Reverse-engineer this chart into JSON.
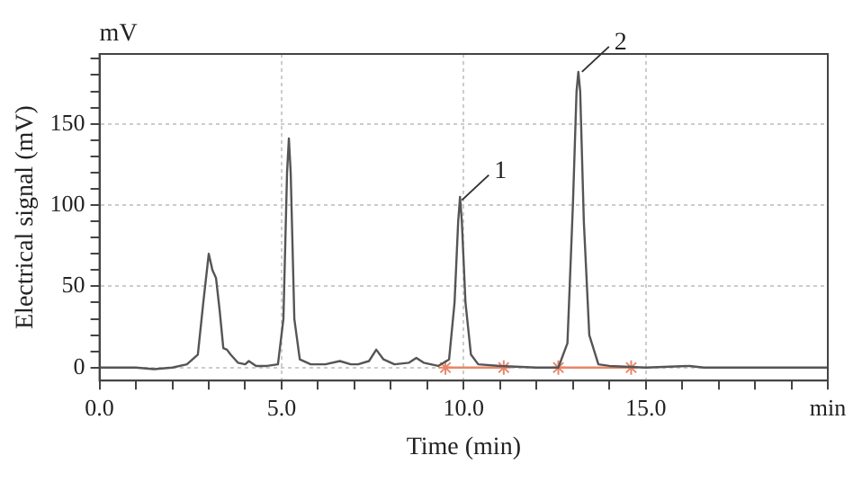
{
  "chart_data": {
    "type": "line",
    "xlabel": "Time (min)",
    "ylabel": "Electrical signal (mV)",
    "xlim": [
      0,
      20
    ],
    "ylim": [
      -8,
      193
    ],
    "xticks": [
      {
        "value": 0,
        "label": "0.0"
      },
      {
        "value": 1,
        "label": null
      },
      {
        "value": 2,
        "label": null
      },
      {
        "value": 3,
        "label": null
      },
      {
        "value": 4,
        "label": null
      },
      {
        "value": 5,
        "label": "5.0"
      },
      {
        "value": 6,
        "label": null
      },
      {
        "value": 7,
        "label": null
      },
      {
        "value": 8,
        "label": null
      },
      {
        "value": 9,
        "label": null
      },
      {
        "value": 10,
        "label": "10.0"
      },
      {
        "value": 11,
        "label": null
      },
      {
        "value": 12,
        "label": null
      },
      {
        "value": 13,
        "label": null
      },
      {
        "value": 14,
        "label": null
      },
      {
        "value": 15,
        "label": "15.0"
      },
      {
        "value": 16,
        "label": null
      },
      {
        "value": 17,
        "label": null
      },
      {
        "value": 18,
        "label": null
      },
      {
        "value": 19,
        "label": null
      },
      {
        "value": 20,
        "label": "min"
      }
    ],
    "yticks": [
      0,
      {
        "value": 10,
        "label": null
      },
      {
        "value": 20,
        "label": null
      },
      {
        "value": 30,
        "label": null
      },
      {
        "value": 40,
        "label": null
      },
      50,
      {
        "value": 60,
        "label": null
      },
      {
        "value": 70,
        "label": null
      },
      {
        "value": 80,
        "label": null
      },
      {
        "value": 90,
        "label": null
      },
      100,
      {
        "value": 110,
        "label": null
      },
      {
        "value": 120,
        "label": null
      },
      {
        "value": 130,
        "label": null
      },
      {
        "value": 140,
        "label": null
      },
      150,
      {
        "value": 160,
        "label": null
      },
      {
        "value": 170,
        "label": null
      },
      {
        "value": 180,
        "label": null
      },
      {
        "value": 190,
        "label": null
      }
    ],
    "grid": true,
    "legend": false,
    "marker": "none",
    "line_style": "solid",
    "series": [
      {
        "color": "#555555",
        "x": [
          0,
          1,
          1.5,
          2,
          2.4,
          2.7,
          2.85,
          3.0,
          3.1,
          3.2,
          3.3,
          3.4,
          3.5,
          3.6,
          3.8,
          4.0,
          4.1,
          4.3,
          4.6,
          4.9,
          5.05,
          5.15,
          5.2,
          5.25,
          5.35,
          5.5,
          5.8,
          6.2,
          6.6,
          6.9,
          7.1,
          7.4,
          7.6,
          7.8,
          8.1,
          8.5,
          8.7,
          8.9,
          9.3,
          9.6,
          9.75,
          9.85,
          9.9,
          9.95,
          10.05,
          10.2,
          10.4,
          11,
          12,
          12.6,
          12.85,
          13.0,
          13.1,
          13.15,
          13.2,
          13.3,
          13.45,
          13.7,
          14,
          15,
          16.2,
          16.6,
          20
        ],
        "values": [
          0,
          0,
          -1,
          0,
          2,
          8,
          40,
          70,
          60,
          55,
          35,
          12,
          11,
          8,
          3,
          2,
          4,
          1,
          1,
          2,
          30,
          120,
          141,
          120,
          30,
          5,
          2,
          2,
          4,
          2,
          2,
          4,
          11,
          5,
          2,
          3,
          6,
          3,
          1,
          5,
          40,
          90,
          105,
          90,
          40,
          8,
          2,
          1,
          0,
          0,
          15,
          100,
          170,
          182,
          170,
          90,
          20,
          2,
          1,
          0,
          1,
          0,
          0
        ]
      },
      {
        "color": "#e8866a",
        "marker": "cross",
        "x": [
          9.5,
          11.1
        ],
        "values": [
          0,
          0
        ]
      },
      {
        "color": "#e8866a",
        "marker": "cross",
        "x": [
          12.6,
          14.6
        ],
        "values": [
          0,
          0
        ]
      }
    ],
    "annotations": [
      "mV",
      {
        "text": "1",
        "x": 9.9,
        "y": 103
      },
      {
        "text": "2",
        "x": 13.2,
        "y": 182
      }
    ]
  }
}
